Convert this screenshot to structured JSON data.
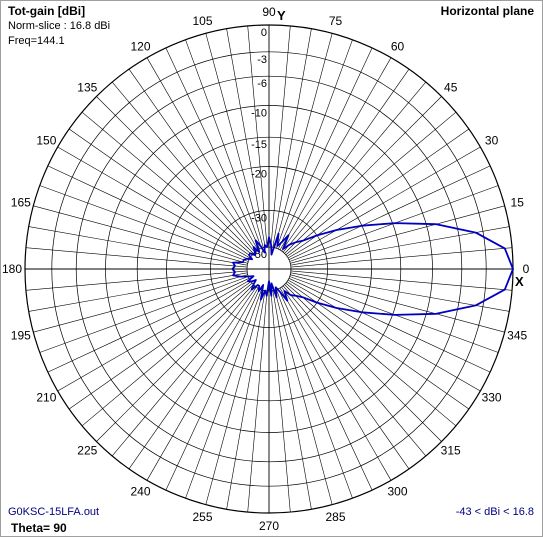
{
  "header": {
    "title": "Tot-gain [dBi]",
    "norm_slice": "Norm-slice : 16.8 dBi",
    "freq": "Freq=144.1",
    "plane": "Horizontal plane"
  },
  "footer": {
    "file": "G0KSC-15LFA.out",
    "theta": "Theta= 90",
    "range": "-43 < dBi < 16.8"
  },
  "axis_letters": {
    "y": "Y",
    "x": "X"
  },
  "colors": {
    "pattern": "#0000c0",
    "grid": "#000000",
    "footer_text": "#000080"
  },
  "chart_data": {
    "type": "polar",
    "angle_ticks": [
      "0",
      "15",
      "30",
      "45",
      "60",
      "75",
      "90",
      "105",
      "120",
      "135",
      "150",
      "165",
      "180",
      "195",
      "210",
      "225",
      "240",
      "255",
      "270",
      "285",
      "300",
      "315",
      "330",
      "345"
    ],
    "radial_ticks": [
      "0",
      "-3",
      "-6",
      "-10",
      "-15",
      "-20",
      "-30",
      "-50"
    ],
    "radial_positions": [
      1.0,
      0.89,
      0.79,
      0.67,
      0.54,
      0.42,
      0.24,
      0.09
    ],
    "grid": true,
    "series": [
      {
        "angles_deg": [
          0,
          5,
          10,
          15,
          20,
          25,
          30,
          35,
          40,
          45,
          50,
          55,
          60,
          65,
          70,
          75,
          80,
          85,
          90,
          95,
          100,
          105,
          110,
          115,
          120,
          125,
          130,
          135,
          140,
          145,
          150,
          155,
          160,
          165,
          170,
          175,
          180,
          185,
          190,
          195,
          200,
          205,
          210,
          215,
          220,
          225,
          230,
          235,
          240,
          245,
          250,
          255,
          260,
          265,
          270,
          275,
          280,
          285,
          290,
          295,
          300,
          305,
          310,
          315,
          320,
          325,
          330,
          335,
          340,
          345,
          350,
          355
        ],
        "relative_radius": [
          1.0,
          0.97,
          0.86,
          0.71,
          0.55,
          0.42,
          0.32,
          0.24,
          0.18,
          0.155,
          0.13,
          0.1,
          0.16,
          0.12,
          0.1,
          0.15,
          0.06,
          0.1,
          0.13,
          0.09,
          0.1,
          0.07,
          0.1,
          0.13,
          0.08,
          0.11,
          0.09,
          0.08,
          0.1,
          0.1,
          0.08,
          0.1,
          0.11,
          0.11,
          0.15,
          0.14,
          0.15,
          0.14,
          0.15,
          0.12,
          0.09,
          0.07,
          0.1,
          0.09,
          0.07,
          0.09,
          0.11,
          0.08,
          0.08,
          0.1,
          0.07,
          0.13,
          0.09,
          0.11,
          0.05,
          0.11,
          0.06,
          0.12,
          0.08,
          0.1,
          0.15,
          0.11,
          0.14,
          0.155,
          0.18,
          0.24,
          0.32,
          0.42,
          0.55,
          0.71,
          0.86,
          0.97
        ]
      }
    ]
  }
}
